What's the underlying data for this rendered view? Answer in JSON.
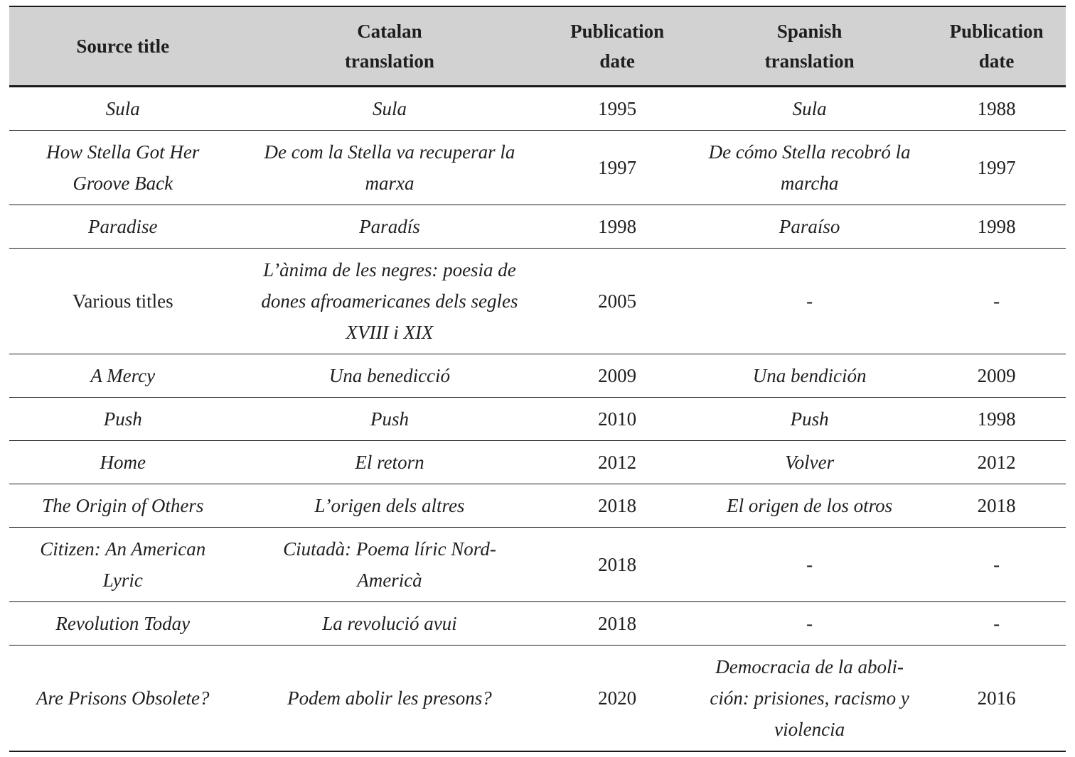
{
  "colors": {
    "header_bg": "#d2d2d2",
    "text": "#1f1f1f",
    "line": "#1a1a1a",
    "page_bg": "#ffffff"
  },
  "table": {
    "columns": [
      {
        "label": "Source title"
      },
      {
        "label": "Catalan\ntranslation"
      },
      {
        "label": "Publication\ndate"
      },
      {
        "label": "Spanish\ntranslation"
      },
      {
        "label": "Publication\ndate"
      }
    ],
    "column_widths_percent": [
      21.5,
      29.0,
      14.1,
      22.3,
      13.1
    ],
    "rows": [
      {
        "cells": [
          {
            "text": "Sula",
            "italic": true
          },
          {
            "text": "Sula",
            "italic": true
          },
          {
            "text": "1995",
            "italic": false
          },
          {
            "text": "Sula",
            "italic": true
          },
          {
            "text": "1988",
            "italic": false
          }
        ]
      },
      {
        "cells": [
          {
            "text": "How Stella Got Her\nGroove Back",
            "italic": true
          },
          {
            "text": "De com la Stella va recuperar la\nmarxa",
            "italic": true
          },
          {
            "text": "1997",
            "italic": false
          },
          {
            "text": "De cómo Stella recobró la\nmarcha",
            "italic": true
          },
          {
            "text": "1997",
            "italic": false
          }
        ]
      },
      {
        "cells": [
          {
            "text": "Paradise",
            "italic": true
          },
          {
            "text": "Paradís",
            "italic": true
          },
          {
            "text": "1998",
            "italic": false
          },
          {
            "text": "Paraíso",
            "italic": true
          },
          {
            "text": "1998",
            "italic": false
          }
        ]
      },
      {
        "cells": [
          {
            "text": "Various titles",
            "italic": false
          },
          {
            "text": "L’ànima de les negres: poesia de\ndones afroamericanes dels segles\nXVIII i XIX",
            "italic": true
          },
          {
            "text": "2005",
            "italic": false
          },
          {
            "text": "-",
            "italic": false
          },
          {
            "text": "-",
            "italic": false
          }
        ]
      },
      {
        "cells": [
          {
            "text": "A Mercy",
            "italic": true
          },
          {
            "text": "Una benedicció",
            "italic": true
          },
          {
            "text": "2009",
            "italic": false
          },
          {
            "text": "Una bendición",
            "italic": true
          },
          {
            "text": "2009",
            "italic": false
          }
        ]
      },
      {
        "cells": [
          {
            "text": "Push",
            "italic": true
          },
          {
            "text": "Push",
            "italic": true
          },
          {
            "text": "2010",
            "italic": false
          },
          {
            "text": "Push",
            "italic": true
          },
          {
            "text": "1998",
            "italic": false
          }
        ]
      },
      {
        "cells": [
          {
            "text": "Home",
            "italic": true
          },
          {
            "text": "El retorn",
            "italic": true
          },
          {
            "text": "2012",
            "italic": false
          },
          {
            "text": "Volver",
            "italic": true
          },
          {
            "text": "2012",
            "italic": false
          }
        ]
      },
      {
        "cells": [
          {
            "text": "The Origin of Others",
            "italic": true
          },
          {
            "text": "L’origen dels altres",
            "italic": true
          },
          {
            "text": "2018",
            "italic": false
          },
          {
            "text": "El origen de los otros",
            "italic": true
          },
          {
            "text": "2018",
            "italic": false
          }
        ]
      },
      {
        "cells": [
          {
            "text": "Citizen: An American\nLyric",
            "italic": true
          },
          {
            "text": "Ciutadà: Poema líric Nord-\nAmericà",
            "italic": true
          },
          {
            "text": "2018",
            "italic": false
          },
          {
            "text": "-",
            "italic": false
          },
          {
            "text": "-",
            "italic": false
          }
        ]
      },
      {
        "cells": [
          {
            "text": "Revolution Today",
            "italic": true
          },
          {
            "text": "La revolució avui",
            "italic": true
          },
          {
            "text": "2018",
            "italic": false
          },
          {
            "text": "-",
            "italic": false
          },
          {
            "text": "-",
            "italic": false
          }
        ]
      },
      {
        "cells": [
          {
            "text": "Are Prisons Obsolete?",
            "italic": true
          },
          {
            "text": "Podem abolir les presons?",
            "italic": true
          },
          {
            "text": "2020",
            "italic": false
          },
          {
            "text": "Democracia de la aboli-\nción: prisiones, racismo y\nviolencia",
            "italic": true
          },
          {
            "text": "2016",
            "italic": false
          }
        ]
      }
    ]
  }
}
